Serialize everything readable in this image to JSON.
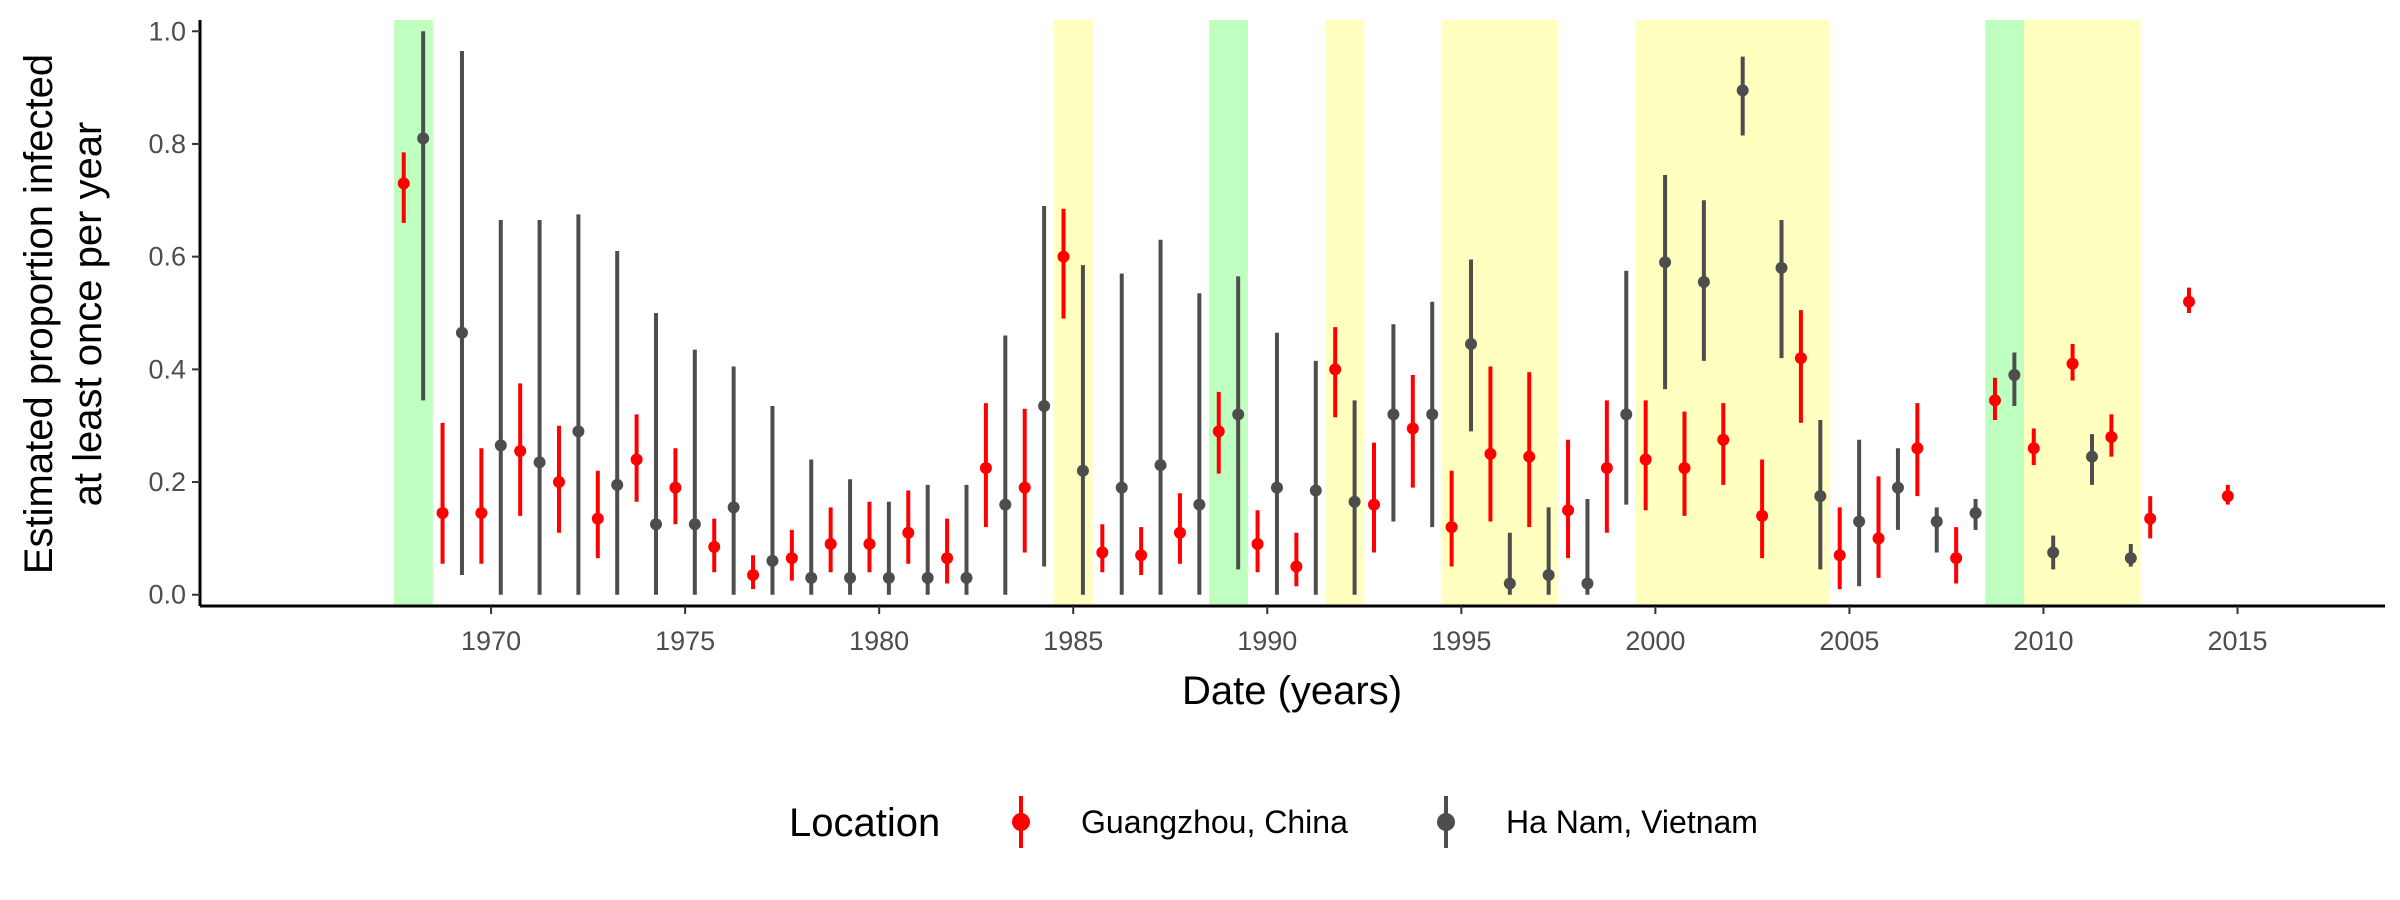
{
  "chart_data": {
    "type": "scatter",
    "subtype": "pointrange",
    "xlabel": "Date (years)",
    "ylabel_lines": [
      "Estimated proportion infected",
      "at least once per year"
    ],
    "xlim": [
      1962.5,
      2018.8
    ],
    "ylim": [
      -0.02,
      1.02
    ],
    "x_ticks": [
      1970,
      1975,
      1980,
      1985,
      1990,
      1995,
      2000,
      2005,
      2010,
      2015
    ],
    "x_tick_labels": [
      "1970",
      "1975",
      "1980",
      "1985",
      "1990",
      "1995",
      "2000",
      "2005",
      "2010",
      "2015"
    ],
    "y_ticks": [
      0.0,
      0.2,
      0.4,
      0.6,
      0.8,
      1.0
    ],
    "y_tick_labels": [
      "0.0",
      "0.2",
      "0.4",
      "0.6",
      "0.8",
      "1.0"
    ],
    "grid": false,
    "legend": {
      "title": "Location",
      "position": "bottom"
    },
    "background_periods": [
      {
        "start": 1967.5,
        "end": 1968.5,
        "color": "#bfffbf"
      },
      {
        "start": 1984.5,
        "end": 1985.5,
        "color": "#ffffbf"
      },
      {
        "start": 1988.5,
        "end": 1989.5,
        "color": "#bfffbf"
      },
      {
        "start": 1991.5,
        "end": 1992.5,
        "color": "#ffffbf"
      },
      {
        "start": 1994.5,
        "end": 1997.5,
        "color": "#ffffbf"
      },
      {
        "start": 1999.5,
        "end": 2004.5,
        "color": "#ffffbf"
      },
      {
        "start": 2008.5,
        "end": 2009.5,
        "color": "#bfffbf"
      },
      {
        "start": 2009.5,
        "end": 2012.5,
        "color": "#ffffbf"
      }
    ],
    "series": [
      {
        "name": "Guangzhou, China",
        "color": "#ff0000",
        "x": [
          1968,
          1969,
          1970,
          1971,
          1972,
          1973,
          1974,
          1975,
          1976,
          1977,
          1978,
          1979,
          1980,
          1981,
          1982,
          1983,
          1984,
          1985,
          1986,
          1987,
          1988,
          1989,
          1990,
          1991,
          1992,
          1993,
          1994,
          1995,
          1996,
          1997,
          1998,
          1999,
          2000,
          2001,
          2002,
          2003,
          2004,
          2005,
          2006,
          2007,
          2008,
          2009,
          2010,
          2011,
          2012,
          2013,
          2014,
          2015
        ],
        "y": [
          0.73,
          0.145,
          0.145,
          0.255,
          0.2,
          0.135,
          0.24,
          0.19,
          0.085,
          0.035,
          0.065,
          0.09,
          0.09,
          0.11,
          0.065,
          0.225,
          0.19,
          0.6,
          0.075,
          0.07,
          0.11,
          0.29,
          0.09,
          0.05,
          0.4,
          0.16,
          0.295,
          0.12,
          0.25,
          0.245,
          0.15,
          0.225,
          0.24,
          0.225,
          0.275,
          0.14,
          0.42,
          0.07,
          0.1,
          0.26,
          0.065,
          0.345,
          0.26,
          0.41,
          0.28,
          0.135,
          0.52,
          0.175
        ],
        "lower": [
          0.66,
          0.055,
          0.055,
          0.14,
          0.11,
          0.065,
          0.165,
          0.125,
          0.04,
          0.01,
          0.025,
          0.04,
          0.04,
          0.055,
          0.02,
          0.12,
          0.075,
          0.49,
          0.04,
          0.035,
          0.055,
          0.215,
          0.04,
          0.015,
          0.315,
          0.075,
          0.19,
          0.05,
          0.13,
          0.12,
          0.065,
          0.11,
          0.15,
          0.14,
          0.195,
          0.065,
          0.305,
          0.01,
          0.03,
          0.175,
          0.02,
          0.31,
          0.23,
          0.38,
          0.245,
          0.1,
          0.5,
          0.16
        ],
        "upper": [
          0.785,
          0.305,
          0.26,
          0.375,
          0.3,
          0.22,
          0.32,
          0.26,
          0.135,
          0.07,
          0.115,
          0.155,
          0.165,
          0.185,
          0.135,
          0.34,
          0.33,
          0.685,
          0.125,
          0.12,
          0.18,
          0.36,
          0.15,
          0.11,
          0.475,
          0.27,
          0.39,
          0.22,
          0.405,
          0.395,
          0.275,
          0.345,
          0.345,
          0.325,
          0.34,
          0.24,
          0.505,
          0.155,
          0.21,
          0.34,
          0.12,
          0.385,
          0.295,
          0.445,
          0.32,
          0.175,
          0.545,
          0.195
        ]
      },
      {
        "name": "Ha Nam, Vietnam",
        "color": "#4d4d4d",
        "x": [
          1968,
          1969,
          1970,
          1971,
          1972,
          1973,
          1974,
          1975,
          1976,
          1977,
          1978,
          1979,
          1980,
          1981,
          1982,
          1983,
          1984,
          1985,
          1986,
          1987,
          1988,
          1989,
          1990,
          1991,
          1992,
          1993,
          1994,
          1995,
          1996,
          1997,
          1998,
          1999,
          2000,
          2001,
          2002,
          2003,
          2004,
          2005,
          2006,
          2007,
          2008,
          2009,
          2010,
          2011,
          2012
        ],
        "y": [
          0.81,
          0.465,
          0.265,
          0.235,
          0.29,
          0.195,
          0.125,
          0.125,
          0.155,
          0.06,
          0.03,
          0.03,
          0.03,
          0.03,
          0.03,
          0.16,
          0.335,
          0.22,
          0.19,
          0.23,
          0.16,
          0.32,
          0.19,
          0.185,
          0.165,
          0.32,
          0.32,
          0.445,
          0.02,
          0.035,
          0.02,
          0.32,
          0.59,
          0.555,
          0.895,
          0.58,
          0.175,
          0.13,
          0.19,
          0.13,
          0.145,
          0.39,
          0.075,
          0.245,
          0.065
        ],
        "lower": [
          0.345,
          0.035,
          0.0,
          0.0,
          0.0,
          0.0,
          0.0,
          0.0,
          0.0,
          0.0,
          0.0,
          0.0,
          0.0,
          0.0,
          0.0,
          0.0,
          0.05,
          0.0,
          0.0,
          0.0,
          0.0,
          0.045,
          0.0,
          0.0,
          0.0,
          0.13,
          0.12,
          0.29,
          0.0,
          0.0,
          0.0,
          0.16,
          0.365,
          0.415,
          0.815,
          0.42,
          0.045,
          0.015,
          0.115,
          0.075,
          0.115,
          0.335,
          0.045,
          0.195,
          0.05
        ],
        "upper": [
          1.0,
          0.965,
          0.665,
          0.665,
          0.675,
          0.61,
          0.5,
          0.435,
          0.405,
          0.335,
          0.24,
          0.205,
          0.165,
          0.195,
          0.195,
          0.46,
          0.69,
          0.585,
          0.57,
          0.63,
          0.535,
          0.565,
          0.465,
          0.415,
          0.345,
          0.48,
          0.52,
          0.595,
          0.11,
          0.155,
          0.17,
          0.575,
          0.745,
          0.7,
          0.955,
          0.665,
          0.31,
          0.275,
          0.26,
          0.155,
          0.17,
          0.43,
          0.105,
          0.285,
          0.09
        ]
      }
    ]
  }
}
